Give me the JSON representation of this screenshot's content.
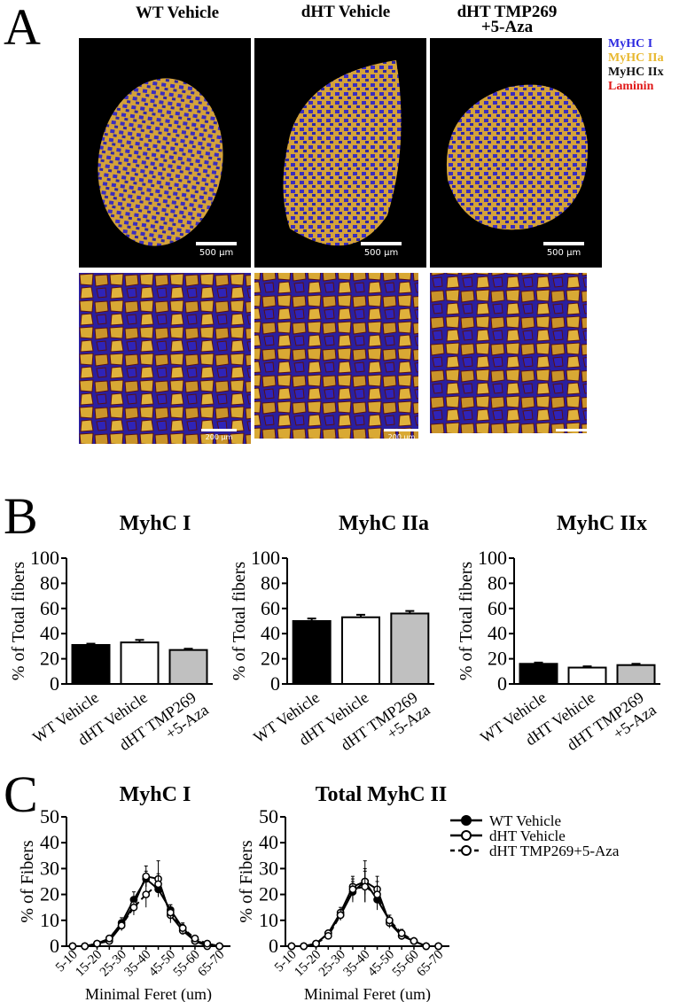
{
  "panels": {
    "A": "A",
    "B": "B",
    "C": "C"
  },
  "panel_a": {
    "columns": [
      "WT Vehicle",
      "dHT Vehicle",
      "dHT TMP269",
      "+5-Aza"
    ],
    "legend": [
      {
        "label": "MyHC I",
        "color": "#2d2ae0"
      },
      {
        "label": "MyHC IIa",
        "color": "#e8b830"
      },
      {
        "label": "MyHC IIx",
        "color": "#111111"
      },
      {
        "label": "Laminin",
        "color": "#e01818"
      }
    ],
    "scale_top": "500 μm",
    "scale_bottom": "200 μm"
  },
  "panel_b": {
    "ylabel": "% of Total fibers",
    "categories": [
      "WT Vehicle",
      "dHT Vehicle",
      "dHT TMP269",
      "+5-Aza"
    ],
    "yticks": [
      "0",
      "20",
      "40",
      "60",
      "80",
      "100"
    ]
  },
  "panel_c": {
    "ylabel": "% of Fibers",
    "xlabel": "Minimal Feret (um)",
    "yticks": [
      "0",
      "10",
      "20",
      "30",
      "40",
      "50"
    ],
    "xticklabels": [
      "5-10",
      "15-20",
      "25-30",
      "35-40",
      "45-50",
      "55-60",
      "65-70"
    ],
    "legend": [
      "WT Vehicle",
      "dHT Vehicle",
      "dHT TMP269+5-Aza"
    ]
  },
  "chart_data": [
    {
      "type": "bar",
      "title": "MyhC I",
      "ylabel": "% of Total fibers",
      "ylim": [
        0,
        100
      ],
      "categories": [
        "WT Vehicle",
        "dHT Vehicle",
        "dHT TMP269\n+5-Aza"
      ],
      "values": [
        31,
        33,
        27
      ],
      "errors": [
        1,
        2,
        1
      ],
      "colors": [
        "#000000",
        "#ffffff",
        "#c0c0c0"
      ]
    },
    {
      "type": "bar",
      "title": "MyhC IIa",
      "ylabel": "% of Total fibers",
      "ylim": [
        0,
        100
      ],
      "categories": [
        "WT Vehicle",
        "dHT Vehicle",
        "dHT TMP269\n+5-Aza"
      ],
      "values": [
        50,
        53,
        56
      ],
      "errors": [
        2,
        2,
        2
      ],
      "colors": [
        "#000000",
        "#ffffff",
        "#c0c0c0"
      ]
    },
    {
      "type": "bar",
      "title": "MyhC IIx",
      "ylabel": "% of Total fibers",
      "ylim": [
        0,
        100
      ],
      "categories": [
        "WT Vehicle",
        "dHT Vehicle",
        "dHT TMP269\n+5-Aza"
      ],
      "values": [
        16,
        13,
        15
      ],
      "errors": [
        1,
        1,
        1
      ],
      "colors": [
        "#000000",
        "#ffffff",
        "#c0c0c0"
      ]
    },
    {
      "type": "line",
      "title": "MyhC I",
      "ylabel": "% of Fibers",
      "xlabel": "Minimal Feret (um)",
      "ylim": [
        0,
        50
      ],
      "x": [
        7.5,
        12.5,
        17.5,
        22.5,
        27.5,
        32.5,
        37.5,
        42.5,
        47.5,
        52.5,
        57.5,
        62.5,
        67.5
      ],
      "series": [
        {
          "name": "WT Vehicle",
          "values": [
            0,
            0,
            1,
            3,
            9,
            18,
            26,
            22,
            14,
            7,
            2,
            1,
            0
          ],
          "errors": [
            0,
            0,
            0.5,
            1,
            2,
            3,
            3,
            3,
            2,
            1.5,
            1,
            0.5,
            0
          ],
          "fill": "#000000"
        },
        {
          "name": "dHT Vehicle",
          "values": [
            0,
            0,
            1,
            2,
            8,
            16,
            27,
            26,
            12,
            6,
            2,
            0,
            0
          ],
          "errors": [
            0,
            0,
            0.5,
            1,
            2,
            3,
            4,
            7,
            3,
            1.5,
            1,
            0,
            0
          ],
          "fill": "#ffffff"
        },
        {
          "name": "dHT TMP269+5-Aza",
          "values": [
            0,
            0,
            1,
            3,
            8,
            15,
            20,
            24,
            13,
            7,
            3,
            1,
            0
          ],
          "errors": [
            0,
            0,
            0.5,
            1,
            2,
            3,
            5,
            4,
            3,
            2,
            1,
            0.5,
            0
          ],
          "fill": "#ffffff"
        }
      ]
    },
    {
      "type": "line",
      "title": "Total MyhC II",
      "ylabel": "% of Fibers",
      "xlabel": "Minimal Feret (um)",
      "ylim": [
        0,
        50
      ],
      "x": [
        7.5,
        12.5,
        17.5,
        22.5,
        27.5,
        32.5,
        37.5,
        42.5,
        47.5,
        52.5,
        57.5,
        62.5,
        67.5
      ],
      "series": [
        {
          "name": "WT Vehicle",
          "values": [
            0,
            0,
            1,
            5,
            12,
            21,
            25,
            18,
            10,
            4,
            2,
            0,
            0
          ],
          "errors": [
            0,
            0,
            0.5,
            1,
            2,
            4,
            5,
            4,
            2,
            1.5,
            1,
            0,
            0
          ],
          "fill": "#000000"
        },
        {
          "name": "dHT Vehicle",
          "values": [
            0,
            0,
            1,
            5,
            13,
            23,
            25,
            22,
            9,
            4,
            2,
            0,
            0
          ],
          "errors": [
            0,
            0,
            0.5,
            1,
            2,
            4,
            8,
            5,
            2,
            1.5,
            1,
            0,
            0
          ],
          "fill": "#ffffff"
        },
        {
          "name": "dHT TMP269+5-Aza",
          "values": [
            0,
            0,
            1,
            4,
            12,
            22,
            23,
            20,
            10,
            5,
            2,
            0,
            0
          ],
          "errors": [
            0,
            0,
            0.5,
            1,
            2,
            4,
            6,
            5,
            2,
            1.5,
            1,
            0,
            0
          ],
          "fill": "#ffffff"
        }
      ]
    }
  ]
}
